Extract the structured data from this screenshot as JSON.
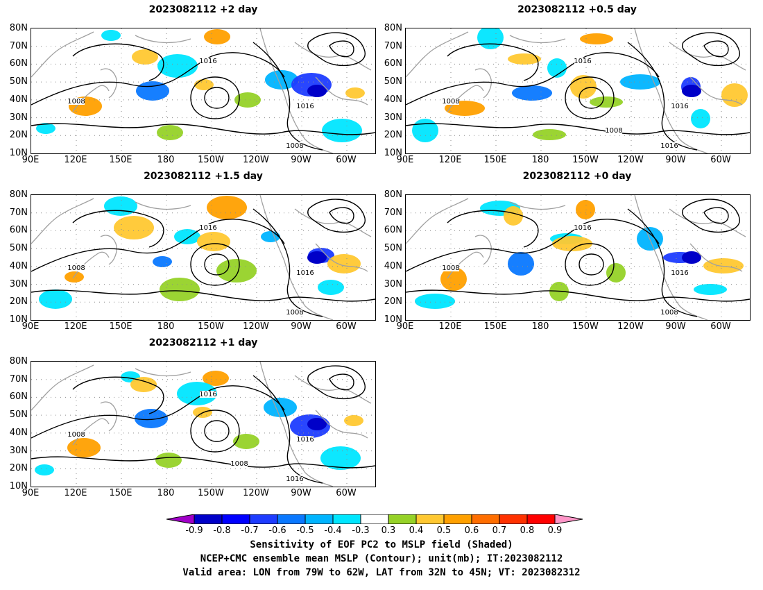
{
  "lat_labels": [
    "80N",
    "70N",
    "60N",
    "50N",
    "40N",
    "30N",
    "20N",
    "10N"
  ],
  "lon_labels": [
    "90E",
    "120E",
    "150E",
    "180",
    "150W",
    "120W",
    "90W",
    "60W"
  ],
  "panels": [
    {
      "title": "2023082112 +2 day",
      "contour_labels": [
        "1016",
        "1008",
        "1016",
        "1008"
      ]
    },
    {
      "title": "2023082112 +0.5 day",
      "contour_labels": [
        "1016",
        "1008",
        "1016",
        "1016",
        "1008"
      ]
    },
    {
      "title": "2023082112 +1.5 day",
      "contour_labels": [
        "1016",
        "1008",
        "1016",
        "1008"
      ]
    },
    {
      "title": "2023082112 +0 day",
      "contour_labels": [
        "1016",
        "1008",
        "1016",
        "1008"
      ]
    },
    {
      "title": "2023082112 +1 day",
      "contour_labels": [
        "1016",
        "1008",
        "1016",
        "1016",
        "1008"
      ]
    }
  ],
  "colorbar": {
    "ticks": [
      "-0.9",
      "-0.8",
      "-0.7",
      "-0.6",
      "-0.5",
      "-0.4",
      "-0.3",
      "0.3",
      "0.4",
      "0.5",
      "0.6",
      "0.7",
      "0.8",
      "0.9"
    ],
    "colors": [
      "#a000c8",
      "#0000c8",
      "#0000ff",
      "#1e3cff",
      "#0a78ff",
      "#00b4ff",
      "#00e6ff",
      "#ffffff",
      "#96d228",
      "#ffc832",
      "#ffa000",
      "#ff6e00",
      "#ff3200",
      "#ff0000",
      "#ff96c8"
    ]
  },
  "captions": [
    "Sensitivity of EOF PC2 to MSLP field (Shaded)",
    "NCEP+CMC ensemble mean MSLP (Contour); unit(mb); IT:2023082112",
    "Valid area: LON from 79W to 62W, LAT from 32N to 45N; VT: 2023082312"
  ],
  "colors": {
    "contour": "#000000",
    "coast": "#a0a0a0",
    "grid": "#8c8c8c"
  }
}
